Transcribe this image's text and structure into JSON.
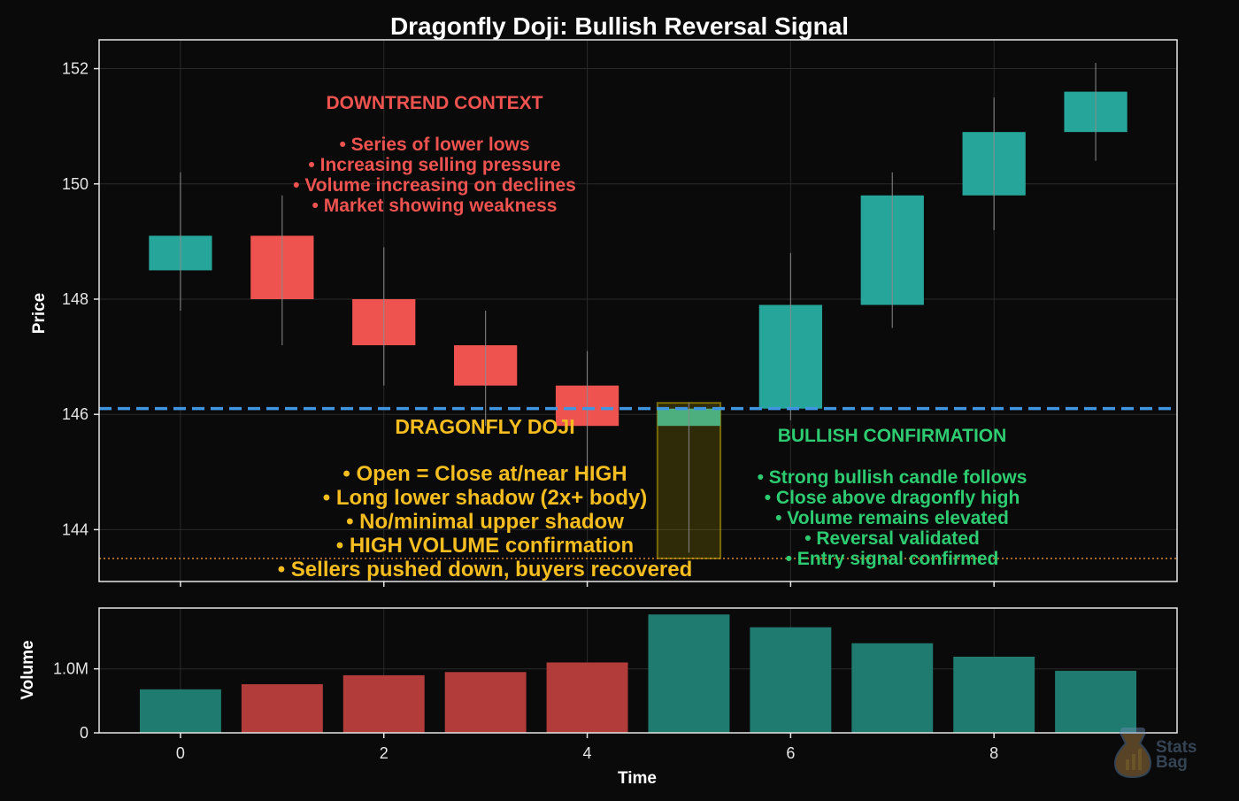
{
  "chart_data": {
    "type": "candlestick",
    "title": "Dragonfly Doji: Bullish Reversal Signal",
    "xlabel": "Time",
    "price_ylabel": "Price",
    "volume_ylabel": "Volume",
    "x_ticks": [
      "0",
      "2",
      "4",
      "6",
      "8"
    ],
    "price_ticks": [
      "144",
      "146",
      "148",
      "150",
      "152"
    ],
    "volume_ticks": [
      "0",
      "1.0M"
    ],
    "price_ylim": [
      143.1,
      152.5
    ],
    "volume_ylim": [
      0,
      1950000
    ],
    "xlim": [
      -0.8,
      9.8
    ],
    "grid": true,
    "candles": [
      {
        "x": 0,
        "open": 148.5,
        "high": 150.2,
        "low": 147.8,
        "close": 149.1,
        "direction": "up"
      },
      {
        "x": 1,
        "open": 149.1,
        "high": 149.8,
        "low": 147.2,
        "close": 148.0,
        "direction": "down"
      },
      {
        "x": 2,
        "open": 148.0,
        "high": 148.9,
        "low": 146.5,
        "close": 147.2,
        "direction": "down"
      },
      {
        "x": 3,
        "open": 147.2,
        "high": 147.8,
        "low": 145.8,
        "close": 146.5,
        "direction": "down"
      },
      {
        "x": 4,
        "open": 146.5,
        "high": 147.1,
        "low": 145.0,
        "close": 145.8,
        "direction": "down"
      },
      {
        "x": 5,
        "open": 145.8,
        "high": 146.2,
        "low": 143.6,
        "close": 146.1,
        "direction": "doji"
      },
      {
        "x": 6,
        "open": 146.1,
        "high": 148.8,
        "low": 145.9,
        "close": 147.9,
        "direction": "up"
      },
      {
        "x": 7,
        "open": 147.9,
        "high": 150.2,
        "low": 147.5,
        "close": 149.8,
        "direction": "up"
      },
      {
        "x": 8,
        "open": 149.8,
        "high": 151.5,
        "low": 149.2,
        "close": 150.9,
        "direction": "up"
      },
      {
        "x": 9,
        "open": 150.9,
        "high": 152.1,
        "low": 150.4,
        "close": 151.6,
        "direction": "up"
      }
    ],
    "volume": [
      {
        "x": 0,
        "value": 680000,
        "direction": "up"
      },
      {
        "x": 1,
        "value": 760000,
        "direction": "down"
      },
      {
        "x": 2,
        "value": 900000,
        "direction": "down"
      },
      {
        "x": 3,
        "value": 950000,
        "direction": "down"
      },
      {
        "x": 4,
        "value": 1100000,
        "direction": "down"
      },
      {
        "x": 5,
        "value": 1850000,
        "direction": "up"
      },
      {
        "x": 6,
        "value": 1650000,
        "direction": "up"
      },
      {
        "x": 7,
        "value": 1400000,
        "direction": "up"
      },
      {
        "x": 8,
        "value": 1190000,
        "direction": "up"
      },
      {
        "x": 9,
        "value": 970000,
        "direction": "up"
      }
    ],
    "reference_lines": {
      "doji_high": 146.1,
      "doji_low": 143.5
    },
    "doji_highlight": {
      "x": 5,
      "price_low": 143.5,
      "price_high": 146.2
    },
    "annotations": {
      "downtrend": {
        "heading": "DOWNTREND CONTEXT",
        "lines": [
          "• Series of lower lows",
          "• Increasing selling pressure",
          "• Volume increasing on declines",
          "• Market showing weakness"
        ]
      },
      "doji": {
        "heading": "DRAGONFLY DOJI",
        "lines": [
          "• Open = Close at/near HIGH",
          "• Long lower shadow (2x+ body)",
          "• No/minimal upper shadow",
          "• HIGH VOLUME confirmation",
          "• Sellers pushed down, buyers recovered"
        ]
      },
      "confirmation": {
        "heading": "BULLISH CONFIRMATION",
        "lines": [
          "• Strong bullish candle follows",
          "• Close above dragonfly high",
          "• Volume remains elevated",
          "• Reversal validated",
          "• Entry signal confirmed"
        ]
      }
    },
    "colors": {
      "background": "#0a0a0a",
      "up": "#26a69a",
      "down": "#ef5350",
      "doji_body": "#4caf7d",
      "volume_up": "#1f7a70",
      "volume_down": "#b23c3a",
      "wick": "#8a8a8a",
      "high_line": "#3f95e0",
      "low_line": "#d98a2b",
      "highlight": "#b8a000",
      "downtrend_text": "#ef5350",
      "doji_text": "#f5bd1f",
      "confirmation_text": "#2ecc71",
      "axis": "#e6e6e6",
      "grid": "#2a2a2a"
    }
  },
  "watermark": {
    "text_line1": "Stats",
    "text_line2": "Bag"
  }
}
